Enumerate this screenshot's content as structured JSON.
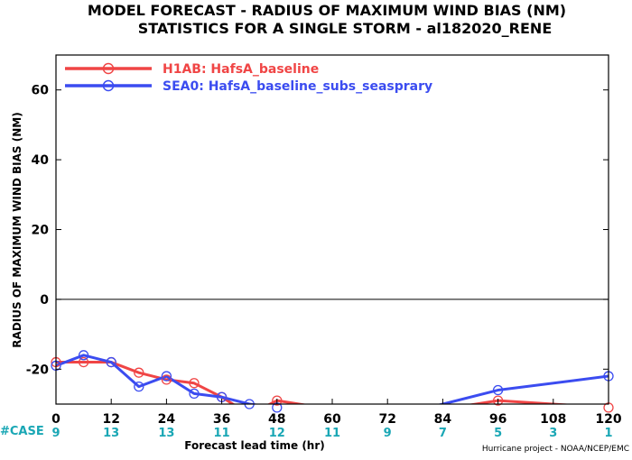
{
  "chart_data": {
    "type": "line",
    "title_line1": "MODEL FORECAST - RADIUS OF MAXIMUM WIND BIAS (NM)",
    "title_line2": "STATISTICS FOR A SINGLE STORM - al182020_RENE",
    "ylabel": "RADIUS OF MAXIMUM WIND BIAS (NM)",
    "xlabel": "Forecast lead time (hr)",
    "credit": "Hurricane project - NOAA/NCEP/EMC",
    "case_label": "#CASE",
    "xlim": [
      0,
      120
    ],
    "ylim": [
      -30,
      70
    ],
    "x_ticks": [
      "0",
      "12",
      "24",
      "36",
      "48",
      "60",
      "72",
      "84",
      "96",
      "108",
      "120"
    ],
    "y_ticks": [
      "-20",
      "0",
      "20",
      "40",
      "60"
    ],
    "cases": [
      "9",
      "13",
      "13",
      "11",
      "12",
      "11",
      "9",
      "7",
      "5",
      "3",
      "1"
    ],
    "zero_line": 0,
    "series": [
      {
        "name": "H1AB: HafsA_baseline",
        "color": "#f04545",
        "x": [
          0,
          6,
          12,
          18,
          24,
          30,
          36,
          42,
          48,
          72,
          96,
          120
        ],
        "y": [
          -18,
          -18,
          -18,
          -21,
          -23,
          -24,
          -28,
          -33,
          -29,
          -34,
          -29,
          -31
        ]
      },
      {
        "name": "SEA0: HafsA_baseline_subs_seasprary",
        "color": "#3b4cf0",
        "x": [
          0,
          6,
          12,
          18,
          24,
          30,
          36,
          42,
          48,
          72,
          96,
          120
        ],
        "y": [
          -19,
          -16,
          -18,
          -25,
          -22,
          -27,
          -28,
          -30,
          -31,
          -34,
          -26,
          -22
        ]
      }
    ]
  }
}
